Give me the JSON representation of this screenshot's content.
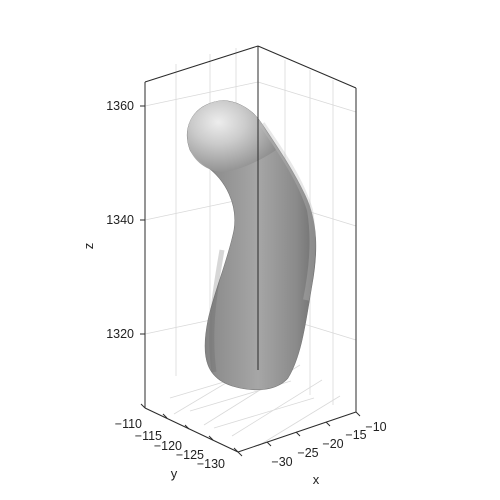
{
  "chart_data": {
    "type": "3d-surface",
    "title": "",
    "xlabel": "x",
    "ylabel": "y",
    "zlabel": "z",
    "x_ticks": [
      -30,
      -25,
      -20,
      -15,
      -10
    ],
    "x_tick_labels": [
      "−30",
      "−25",
      "−20",
      "−15",
      "−10"
    ],
    "y_ticks": [
      -110,
      -115,
      -120,
      -125,
      -130
    ],
    "y_tick_labels": [
      "−110",
      "−115",
      "−120",
      "−125",
      "−130"
    ],
    "z_ticks": [
      1320,
      1340,
      1360
    ],
    "z_tick_labels": [
      "1320",
      "1340",
      "1360"
    ],
    "grid": true,
    "surface_color": "#8f8f8f",
    "highlight_color": "#ececec",
    "shadow_color": "#6f6f6f"
  },
  "axes": {
    "xlabel": "x",
    "ylabel": "y",
    "zlabel": "z"
  }
}
